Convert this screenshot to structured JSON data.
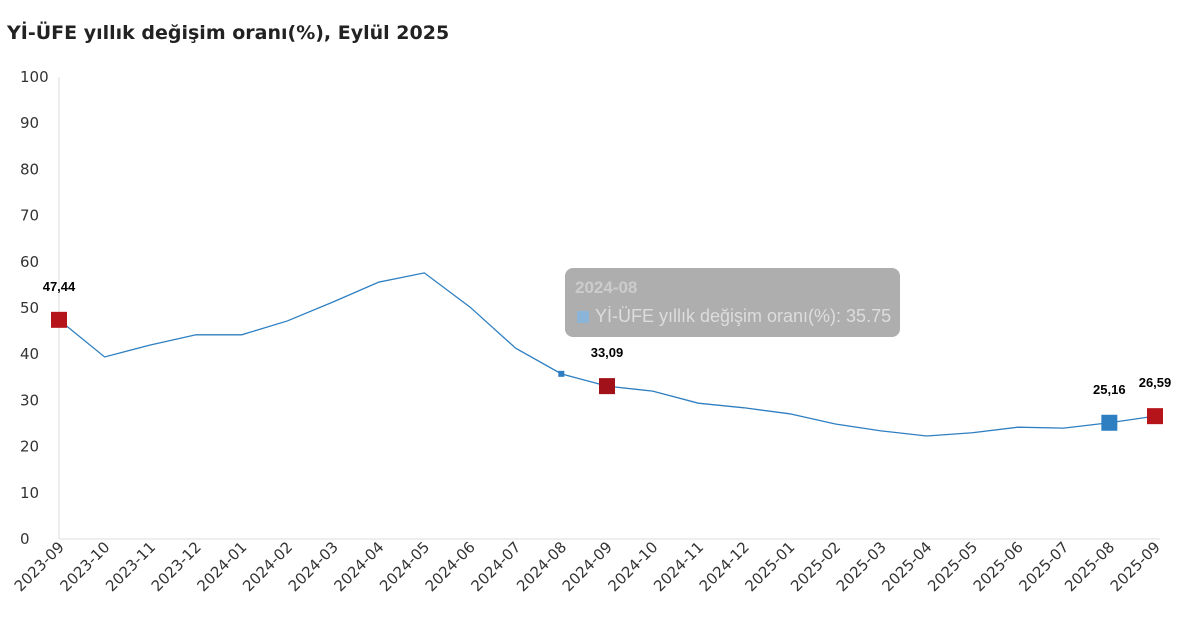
{
  "chart_data": {
    "type": "line",
    "title": "Yİ-ÜFE yıllık değişim oranı(%), Eylül 2025",
    "series": [
      {
        "name": "Yİ-ÜFE yıllık değişim oranı(%)",
        "color": "#2e7fc1"
      }
    ],
    "categories": [
      "2023-09",
      "2023-10",
      "2023-11",
      "2023-12",
      "2024-01",
      "2024-02",
      "2024-03",
      "2024-04",
      "2024-05",
      "2024-06",
      "2024-07",
      "2024-08",
      "2024-09",
      "2024-10",
      "2024-11",
      "2024-12",
      "2025-01",
      "2025-02",
      "2025-03",
      "2025-04",
      "2025-05",
      "2025-06",
      "2025-07",
      "2025-08",
      "2025-09"
    ],
    "values": [
      47.44,
      39.4,
      42.0,
      44.2,
      44.2,
      47.2,
      51.3,
      55.6,
      57.6,
      50.2,
      41.3,
      35.75,
      33.09,
      32.0,
      29.4,
      28.4,
      27.1,
      24.9,
      23.4,
      22.3,
      23.0,
      24.2,
      24.0,
      25.16,
      26.59
    ],
    "ylim": [
      0,
      100
    ],
    "yticks": [
      "0",
      "10",
      "20",
      "30",
      "40",
      "50",
      "60",
      "70",
      "80",
      "90",
      "100"
    ],
    "grid": false,
    "data_labels": [
      {
        "category": "2023-09",
        "text": "47,44",
        "marker_color": "#b5141b"
      },
      {
        "category": "2024-09",
        "text": "33,09",
        "marker_color": "#a0111a"
      },
      {
        "category": "2025-08",
        "text": "25,16",
        "marker_color": "#2e7fc1"
      },
      {
        "category": "2025-09",
        "text": "26,59",
        "marker_color": "#b5141b"
      }
    ],
    "tooltip": {
      "title": "2024-08",
      "swatch_color": "#8ab4d8",
      "text": "Yİ-ÜFE yıllık değişim oranı(%): 35.75"
    }
  }
}
